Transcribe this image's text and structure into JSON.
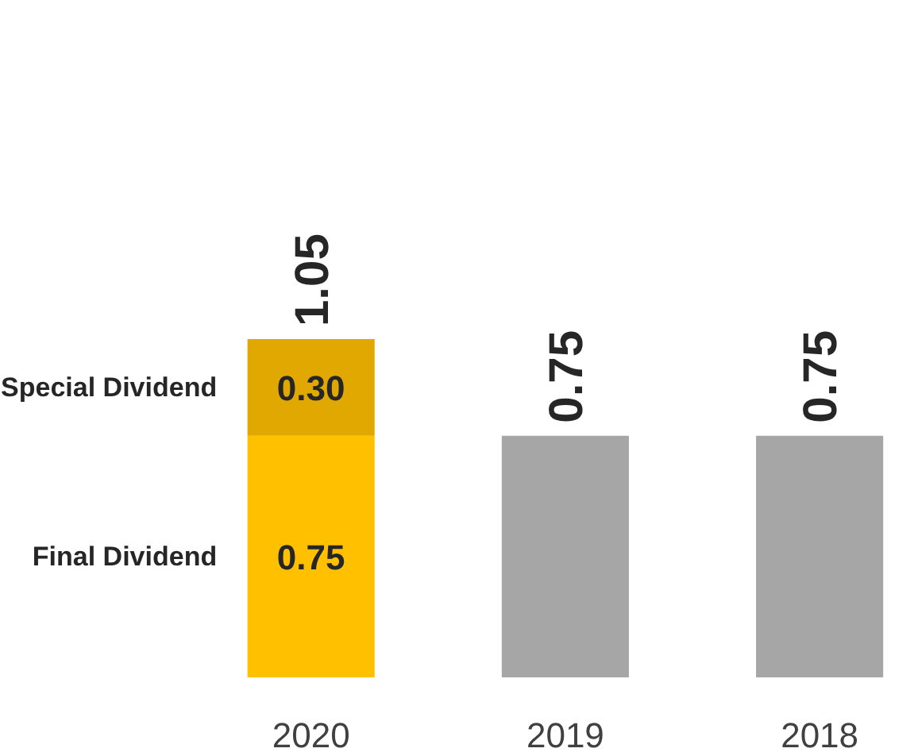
{
  "chart_data": {
    "type": "bar",
    "stacked": true,
    "categories": [
      "2020",
      "2019",
      "2018"
    ],
    "series": [
      {
        "name": "Final Dividend",
        "colors": [
          "#ffc000",
          "#a6a6a6",
          "#a6a6a6"
        ],
        "values": [
          0.75,
          0.75,
          0.75
        ],
        "value_labels": [
          "0.75",
          null,
          null
        ]
      },
      {
        "name": "Special Dividend",
        "colors": [
          "#e0a800",
          null,
          null
        ],
        "values": [
          0.3,
          null,
          null
        ],
        "value_labels": [
          "0.30",
          null,
          null
        ]
      }
    ],
    "totals": [
      "1.05",
      "0.75",
      "0.75"
    ]
  }
}
